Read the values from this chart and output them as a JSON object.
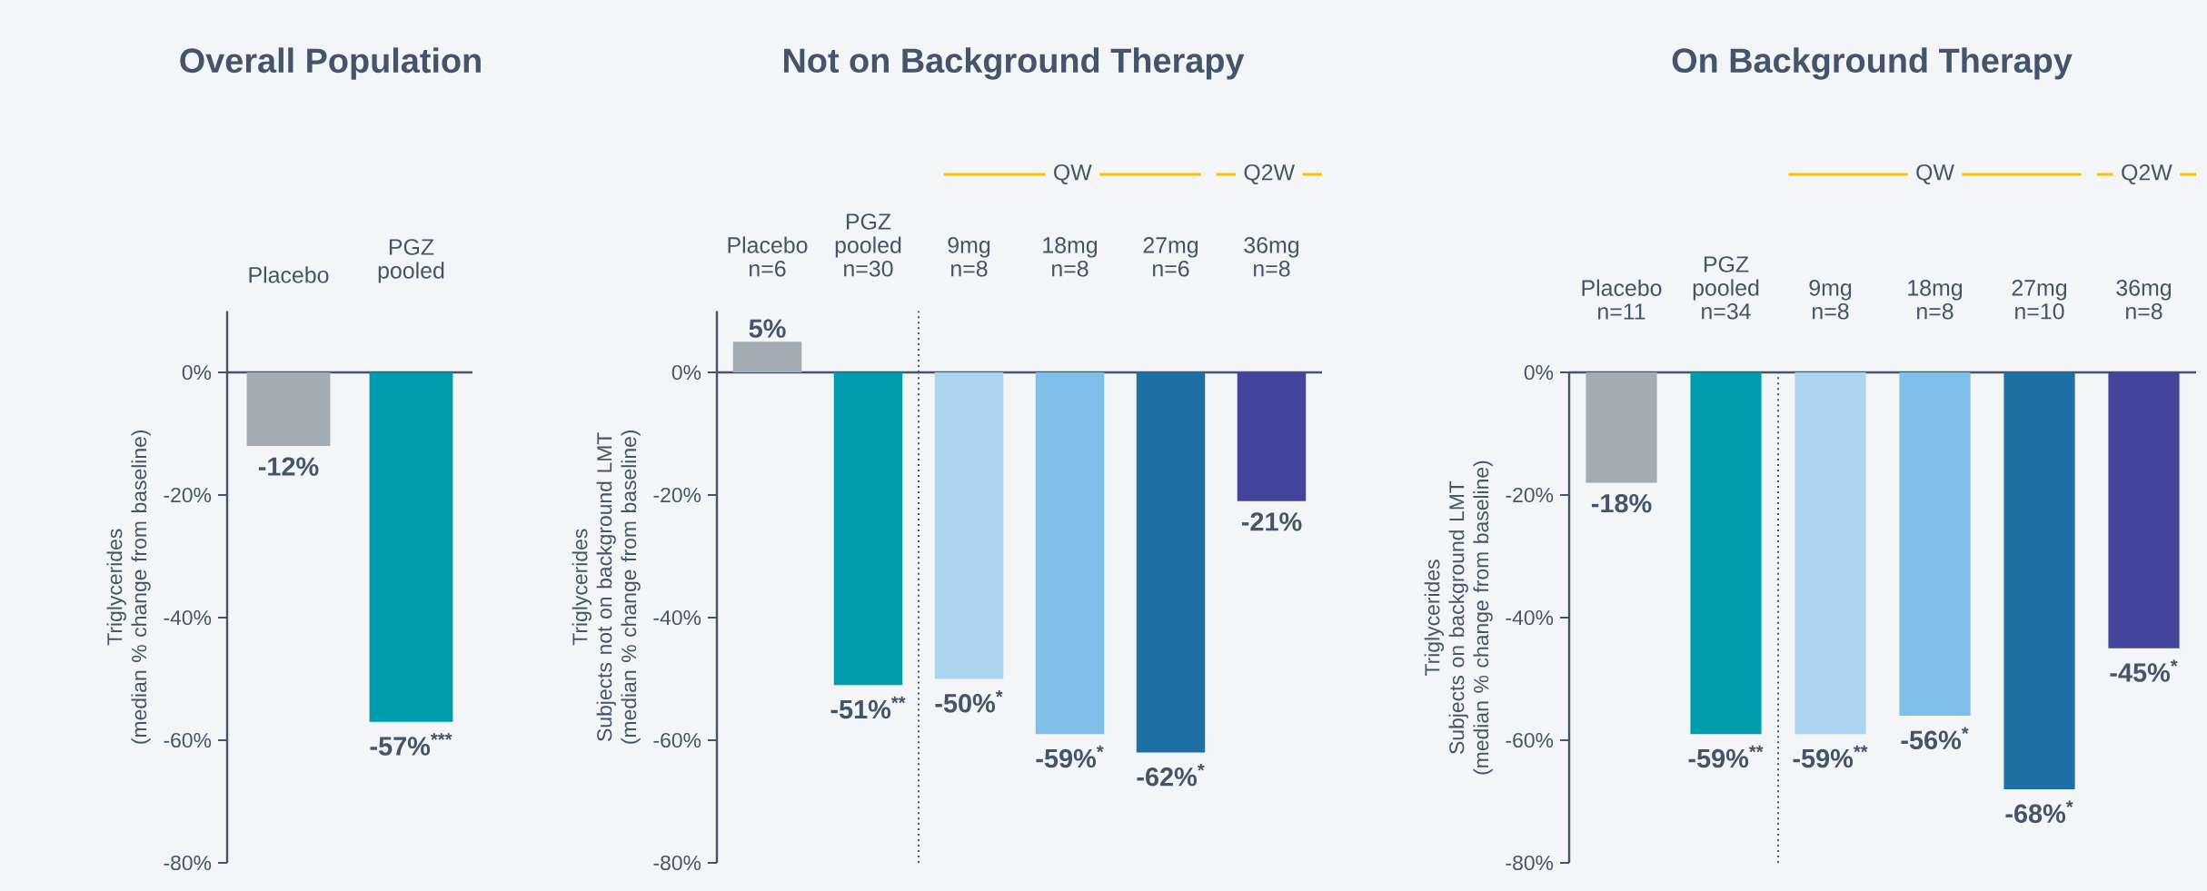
{
  "chart_data": [
    {
      "type": "bar",
      "title": "Overall Population",
      "ylabel": "Triglycerides\n(median % change from baseline)",
      "categories": [
        "Placebo",
        "PGZ\npooled"
      ],
      "values": [
        -12,
        -57
      ],
      "colors": [
        "#a2acb2",
        "#009cad"
      ],
      "value_labels": [
        "-12%",
        "-57%$^{***}$"
      ],
      "ylim": [
        -80,
        10
      ],
      "yticks": [
        {
          "value": -80,
          "label": "-80%"
        },
        {
          "value": -60,
          "label": "-60%"
        },
        {
          "value": -40,
          "label": "-40%"
        },
        {
          "value": -20,
          "label": "-20%"
        },
        {
          "value": 0,
          "label": "0%"
        }
      ]
    },
    {
      "type": "bar",
      "title": "Not on Background Therapy",
      "ylabel": "Triglycerides\nSubjects not on background LMT\n(median % change from baseline)",
      "categories": [
        "Placebo\nn=6",
        "PGZ\npooled\nn=30",
        "9mg\nn=8",
        "18mg\nn=8",
        "27mg\nn=6",
        "36mg\nn=8"
      ],
      "values": [
        5,
        -51,
        -50,
        -59,
        -62,
        -21
      ],
      "colors": [
        "#a2acb2",
        "#009cad",
        "#abd4f0",
        "#7fbfe8",
        "#1d6fa6",
        "#43449c"
      ],
      "value_labels": [
        "5%",
        "-51%$^{**}$",
        "-50%$^{*}$",
        "-59%$^{*}$",
        "-62%$^{*}$",
        "-21%"
      ],
      "ylim": [
        -80,
        10
      ],
      "yticks": [
        {
          "value": -80,
          "label": "-80%"
        },
        {
          "value": -60,
          "label": "-60%"
        },
        {
          "value": -40,
          "label": "-40%"
        },
        {
          "value": -20,
          "label": "-20%"
        },
        {
          "value": 0,
          "label": "0%"
        }
      ],
      "annotations": [
        "QW",
        "Q2W"
      ]
    },
    {
      "type": "bar",
      "title": "On Background Therapy",
      "ylabel": "Triglycerides\nSubjects on background LMT\n(median % change from baseline)",
      "categories": [
        "Placebo\nn=11",
        "PGZ\npooled\nn=34",
        "9mg\nn=8",
        "18mg\nn=8",
        "27mg\nn=10",
        "36mg\nn=8"
      ],
      "values": [
        -18,
        -59,
        -59,
        -56,
        -68,
        -45
      ],
      "colors": [
        "#a2acb2",
        "#009cad",
        "#abd4f0",
        "#7fbfe8",
        "#1d6fa6",
        "#43449c"
      ],
      "value_labels": [
        "-18%",
        "-59%$^{**}$",
        "-59%$^{**}$",
        "-56%$^{*}$",
        "-68%$^{*}$",
        "-45%$^{*}$"
      ],
      "ylim": [
        -80,
        0
      ],
      "yticks": [
        {
          "value": -80,
          "label": "-80%"
        },
        {
          "value": -60,
          "label": "-60%"
        },
        {
          "value": -40,
          "label": "-40%"
        },
        {
          "value": -20,
          "label": "-20%"
        },
        {
          "value": 0,
          "label": "0%"
        }
      ],
      "annotations": [
        "QW",
        "Q2W"
      ]
    }
  ]
}
